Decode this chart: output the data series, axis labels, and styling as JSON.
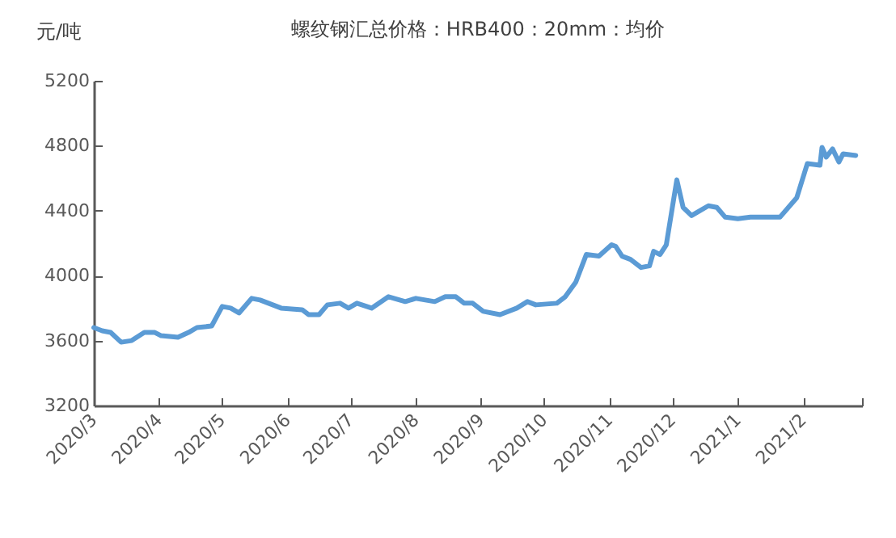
{
  "chart_data": {
    "type": "line",
    "title": "螺纹钢汇总价格：HRB400：20mm：均价",
    "ylabel": "元/吨",
    "x": [
      "2020-03-01",
      "2020-03-05",
      "2020-03-09",
      "2020-03-14",
      "2020-03-19",
      "2020-03-25",
      "2020-03-30",
      "2020-04-02",
      "2020-04-10",
      "2020-04-15",
      "2020-04-19",
      "2020-04-26",
      "2020-05-01",
      "2020-05-05",
      "2020-05-09",
      "2020-05-15",
      "2020-05-19",
      "2020-05-23",
      "2020-05-29",
      "2020-06-08",
      "2020-06-11",
      "2020-06-16",
      "2020-06-20",
      "2020-06-26",
      "2020-06-30",
      "2020-07-04",
      "2020-07-11",
      "2020-07-19",
      "2020-07-27",
      "2020-08-01",
      "2020-08-10",
      "2020-08-15",
      "2020-08-20",
      "2020-08-24",
      "2020-08-28",
      "2020-09-02",
      "2020-09-10",
      "2020-09-18",
      "2020-09-23",
      "2020-09-27",
      "2020-10-07",
      "2020-10-11",
      "2020-10-16",
      "2020-10-21",
      "2020-10-27",
      "2020-11-02",
      "2020-11-04",
      "2020-11-07",
      "2020-11-11",
      "2020-11-16",
      "2020-11-20",
      "2020-11-22",
      "2020-11-25",
      "2020-11-28",
      "2020-12-03",
      "2020-12-06",
      "2020-12-10",
      "2020-12-18",
      "2020-12-22",
      "2020-12-26",
      "2021-01-01",
      "2021-01-07",
      "2021-01-21",
      "2021-01-29",
      "2021-02-03",
      "2021-02-09",
      "2021-02-10",
      "2021-02-12",
      "2021-02-15",
      "2021-02-18",
      "2021-02-20",
      "2021-02-26"
    ],
    "series": [
      {
        "color": "#5b9bd5",
        "values": [
          3680,
          3660,
          3650,
          3590,
          3600,
          3650,
          3650,
          3630,
          3620,
          3650,
          3680,
          3690,
          3810,
          3800,
          3770,
          3860,
          3850,
          3830,
          3800,
          3790,
          3760,
          3760,
          3820,
          3830,
          3800,
          3830,
          3800,
          3870,
          3840,
          3860,
          3840,
          3870,
          3870,
          3830,
          3830,
          3780,
          3760,
          3800,
          3840,
          3820,
          3830,
          3870,
          3960,
          4130,
          4120,
          4190,
          4180,
          4120,
          4100,
          4050,
          4060,
          4150,
          4130,
          4190,
          4590,
          4420,
          4370,
          4430,
          4420,
          4360,
          4350,
          4360,
          4360,
          4480,
          4690,
          4680,
          4790,
          4730,
          4780,
          4700,
          4750,
          4740
        ]
      }
    ],
    "xlim": [
      "2020-03-01",
      "2021-03-01"
    ],
    "xticks": [
      {
        "value": "2020-03",
        "label": "2020/3"
      },
      {
        "value": "2020-04",
        "label": "2020/4"
      },
      {
        "value": "2020-05",
        "label": "2020/5"
      },
      {
        "value": "2020-06",
        "label": "2020/6"
      },
      {
        "value": "2020-07",
        "label": "2020/7"
      },
      {
        "value": "2020-08",
        "label": "2020/8"
      },
      {
        "value": "2020-09",
        "label": "2020/9"
      },
      {
        "value": "2020-10",
        "label": "2020/10"
      },
      {
        "value": "2020-11",
        "label": "2020/11"
      },
      {
        "value": "2020-12",
        "label": "2020/12"
      },
      {
        "value": "2021-01",
        "label": "2021/1"
      },
      {
        "value": "2021-02",
        "label": "2021/2"
      },
      {
        "value": "2021-03",
        "label": null
      }
    ],
    "ylim": [
      3200,
      5200
    ],
    "yticks": [
      3200,
      3600,
      4000,
      4400,
      4800,
      5200
    ],
    "grid": false,
    "legend": false,
    "marker": "none",
    "line_style": "solid"
  }
}
